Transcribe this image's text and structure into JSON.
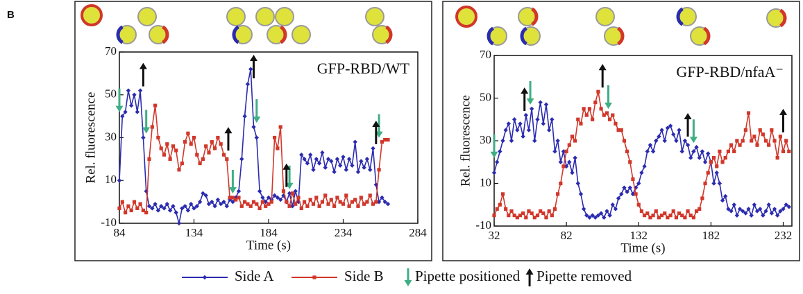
{
  "panel_label": "B",
  "chart_data": [
    {
      "type": "line",
      "title": "GFP-RBD/WT",
      "x_label": "Time (s)",
      "y_label": "Rel. fluorescence",
      "xlim": [
        84,
        284
      ],
      "xticks": [
        84,
        134,
        184,
        234,
        284
      ],
      "ylim": [
        -10,
        70
      ],
      "yticks": [
        -10,
        10,
        30,
        50,
        70
      ],
      "x": [
        84,
        86,
        88,
        90,
        92,
        94,
        96,
        98,
        100,
        102,
        104,
        106,
        108,
        110,
        112,
        114,
        116,
        118,
        120,
        122,
        124,
        126,
        128,
        130,
        132,
        134,
        136,
        138,
        140,
        142,
        144,
        146,
        148,
        150,
        152,
        154,
        156,
        158,
        160,
        162,
        164,
        166,
        168,
        170,
        172,
        174,
        176,
        178,
        180,
        182,
        184,
        186,
        188,
        190,
        192,
        194,
        196,
        198,
        200,
        202,
        204,
        206,
        208,
        210,
        212,
        214,
        216,
        218,
        220,
        222,
        224,
        226,
        228,
        230,
        232,
        234,
        236,
        238,
        240,
        242,
        244,
        246,
        248,
        250,
        252,
        254,
        256,
        258,
        260,
        262,
        264
      ],
      "series": [
        {
          "name": "Side A",
          "color": "#2b2bb0",
          "marker": "diamond",
          "values": [
            10,
            40,
            42,
            52,
            45,
            50,
            42,
            52,
            30,
            5,
            -2,
            -3,
            -1,
            -4,
            -2,
            -3,
            -1,
            -4,
            -2,
            -5,
            -10,
            -3,
            -2,
            -4,
            -1,
            -3,
            -2,
            0,
            4,
            3,
            -1,
            0,
            -2,
            1,
            -1,
            0,
            -2,
            1,
            0,
            2,
            5,
            20,
            40,
            55,
            62,
            35,
            30,
            5,
            2,
            0,
            2,
            1,
            3,
            2,
            1,
            3,
            0,
            4,
            -2,
            5,
            0,
            22,
            20,
            18,
            22,
            15,
            20,
            18,
            23,
            16,
            20,
            19,
            14,
            20,
            17,
            21,
            15,
            20,
            17,
            28,
            14,
            19,
            16,
            20,
            15,
            25,
            8,
            0,
            2,
            0,
            -1
          ]
        },
        {
          "name": "Side B",
          "color": "#d1372a",
          "marker": "square",
          "values": [
            -3,
            0,
            -5,
            -2,
            -4,
            0,
            -3,
            -1,
            -4,
            -5,
            20,
            35,
            45,
            30,
            25,
            22,
            27,
            20,
            26,
            24,
            15,
            18,
            28,
            32,
            27,
            30,
            22,
            18,
            20,
            26,
            23,
            28,
            25,
            30,
            27,
            22,
            20,
            2,
            2,
            1,
            2,
            -2,
            0,
            -1,
            -2,
            0,
            -1,
            -3,
            0,
            -2,
            -1,
            0,
            30,
            25,
            35,
            5,
            0,
            -2,
            4,
            -1,
            2,
            -3,
            0,
            -2,
            1,
            -1,
            2,
            -2,
            0,
            3,
            -1,
            1,
            -2,
            2,
            0,
            -1,
            3,
            -2,
            0,
            1,
            -2,
            2,
            -1,
            0,
            3,
            -1,
            0,
            15,
            28,
            29,
            29
          ]
        }
      ],
      "events": [
        {
          "name": "Pipette positioned",
          "color": "#3fae84",
          "direction": "down",
          "x": [
            84,
            102,
            160,
            176,
            198,
            258
          ]
        },
        {
          "name": "Pipette removed",
          "color": "#111111",
          "direction": "up",
          "x": [
            100,
            157,
            174,
            196,
            256
          ]
        }
      ]
    },
    {
      "type": "line",
      "title": "GFP-RBD/nfaA⁻",
      "x_label": "Time (s)",
      "y_label": "Rel. fluorescence",
      "xlim": [
        32,
        238
      ],
      "xticks": [
        32,
        82,
        132,
        182,
        232
      ],
      "ylim": [
        -10,
        70
      ],
      "yticks": [
        -10,
        10,
        30,
        50,
        70
      ],
      "x": [
        32,
        34,
        36,
        38,
        40,
        42,
        44,
        46,
        48,
        50,
        52,
        54,
        56,
        58,
        60,
        62,
        64,
        66,
        68,
        70,
        72,
        74,
        76,
        78,
        80,
        82,
        84,
        86,
        88,
        90,
        92,
        94,
        96,
        98,
        100,
        102,
        104,
        106,
        108,
        110,
        112,
        114,
        116,
        118,
        120,
        122,
        124,
        126,
        128,
        130,
        132,
        134,
        136,
        138,
        140,
        142,
        144,
        146,
        148,
        150,
        152,
        154,
        156,
        158,
        160,
        162,
        164,
        166,
        168,
        170,
        172,
        174,
        176,
        178,
        180,
        182,
        184,
        186,
        188,
        190,
        192,
        194,
        196,
        198,
        200,
        202,
        204,
        206,
        208,
        210,
        212,
        214,
        216,
        218,
        220,
        222,
        224,
        226,
        228,
        230,
        232,
        234,
        236
      ],
      "series": [
        {
          "name": "Side A",
          "color": "#2b2bb0",
          "marker": "diamond",
          "values": [
            15,
            20,
            25,
            30,
            35,
            38,
            30,
            40,
            35,
            38,
            32,
            42,
            35,
            45,
            30,
            40,
            48,
            38,
            47,
            35,
            40,
            25,
            30,
            20,
            25,
            18,
            20,
            15,
            22,
            10,
            5,
            -2,
            -5,
            -6,
            -5,
            -6,
            -5,
            -4,
            -6,
            -3,
            -5,
            0,
            -2,
            3,
            5,
            8,
            6,
            8,
            5,
            8,
            10,
            15,
            18,
            25,
            28,
            25,
            30,
            32,
            35,
            30,
            36,
            37,
            33,
            30,
            35,
            25,
            30,
            28,
            22,
            25,
            27,
            22,
            25,
            20,
            24,
            20,
            10,
            15,
            10,
            2,
            4,
            -2,
            -3,
            0,
            -5,
            -2,
            -3,
            -4,
            -2,
            -5,
            0,
            -3,
            -2,
            -5,
            -3,
            0,
            -4,
            -2,
            -5,
            -3,
            -2,
            0,
            -1
          ]
        },
        {
          "name": "Side B",
          "color": "#d1372a",
          "marker": "square",
          "values": [
            -5,
            -2,
            0,
            5,
            -2,
            -5,
            -3,
            -5,
            -6,
            -5,
            -4,
            -6,
            -3,
            -4,
            -6,
            -5,
            -3,
            -4,
            -6,
            -3,
            -5,
            -2,
            5,
            10,
            18,
            25,
            28,
            32,
            30,
            40,
            38,
            45,
            42,
            45,
            40,
            48,
            53,
            45,
            42,
            43,
            40,
            42,
            38,
            35,
            35,
            30,
            25,
            20,
            12,
            5,
            0,
            -3,
            -5,
            -4,
            -6,
            -5,
            -3,
            -6,
            -5,
            -4,
            -6,
            -5,
            -3,
            -6,
            -4,
            -5,
            -6,
            -3,
            -5,
            -6,
            -3,
            -2,
            3,
            10,
            15,
            20,
            22,
            18,
            25,
            20,
            22,
            25,
            28,
            25,
            30,
            28,
            30,
            35,
            43,
            30,
            32,
            28,
            35,
            33,
            30,
            28,
            35,
            30,
            22,
            32,
            25,
            30,
            25
          ]
        }
      ],
      "events": [
        {
          "name": "Pipette positioned",
          "color": "#3fae84",
          "direction": "down",
          "x": [
            32,
            57,
            111,
            170
          ]
        },
        {
          "name": "Pipette removed",
          "color": "#111111",
          "direction": "up",
          "x": [
            53,
            107,
            166,
            232
          ]
        }
      ]
    }
  ]
}
